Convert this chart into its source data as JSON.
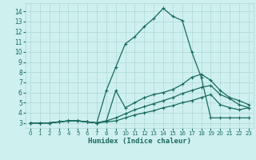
{
  "xlabel": "Humidex (Indice chaleur)",
  "bg_color": "#cef0ee",
  "grid_color": "#b0d8d4",
  "line_color": "#1a6b60",
  "xlim": [
    -0.5,
    23.5
  ],
  "ylim": [
    2.5,
    14.8
  ],
  "xticks": [
    0,
    1,
    2,
    3,
    4,
    5,
    6,
    7,
    8,
    9,
    10,
    11,
    12,
    13,
    14,
    15,
    16,
    17,
    18,
    19,
    20,
    21,
    22,
    23
  ],
  "yticks": [
    3,
    4,
    5,
    6,
    7,
    8,
    9,
    10,
    11,
    12,
    13,
    14
  ],
  "line1_y": [
    3.0,
    3.0,
    3.0,
    3.1,
    3.2,
    3.2,
    3.1,
    3.0,
    6.2,
    8.5,
    10.8,
    11.5,
    12.5,
    13.3,
    14.3,
    13.5,
    13.1,
    10.0,
    7.5,
    3.5,
    3.5,
    3.5,
    3.5,
    3.5
  ],
  "line2_y": [
    3.0,
    3.0,
    3.0,
    3.1,
    3.2,
    3.2,
    3.1,
    3.0,
    3.2,
    6.2,
    4.5,
    5.0,
    5.5,
    5.8,
    6.0,
    6.3,
    6.8,
    7.5,
    7.8,
    7.2,
    6.2,
    5.5,
    5.2,
    4.8
  ],
  "line3_y": [
    3.0,
    3.0,
    3.0,
    3.1,
    3.2,
    3.2,
    3.1,
    3.0,
    3.2,
    3.5,
    3.9,
    4.3,
    4.6,
    4.9,
    5.2,
    5.5,
    5.9,
    6.2,
    6.5,
    6.7,
    5.8,
    5.4,
    4.8,
    4.5
  ],
  "line4_y": [
    3.0,
    3.0,
    3.0,
    3.1,
    3.2,
    3.2,
    3.1,
    3.0,
    3.1,
    3.2,
    3.5,
    3.8,
    4.0,
    4.2,
    4.5,
    4.7,
    5.0,
    5.2,
    5.5,
    5.8,
    4.8,
    4.5,
    4.3,
    4.5
  ]
}
